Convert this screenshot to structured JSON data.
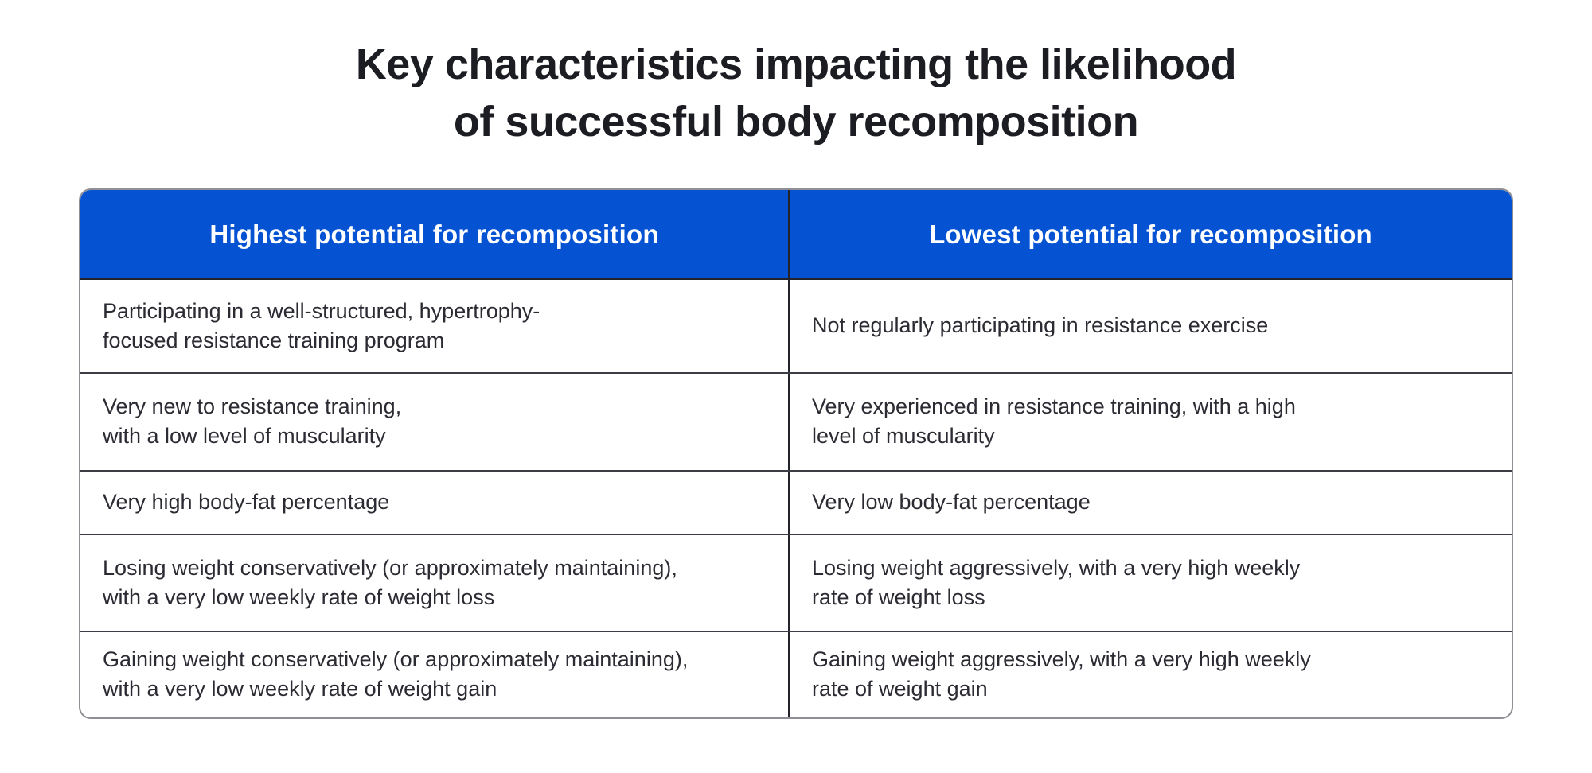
{
  "title": {
    "text": "Key characteristics impacting the likelihood\nof successful body recomposition"
  },
  "table": {
    "headers": [
      "Highest potential for recomposition",
      "Lowest potential for recomposition"
    ],
    "rows": [
      {
        "left": "Participating in a well-structured, hypertrophy-\nfocused resistance training program",
        "right": "Not regularly participating in resistance exercise"
      },
      {
        "left": "Very new to resistance training,\nwith a low level of muscularity",
        "right": "Very experienced in resistance training, with a high\nlevel of muscularity"
      },
      {
        "left": "Very high body-fat percentage",
        "right": "Very low body-fat percentage"
      },
      {
        "left": "Losing weight conservatively (or approximately maintaining),\nwith a very low weekly rate of weight loss",
        "right": "Losing weight aggressively, with a very high weekly\nrate of weight loss"
      },
      {
        "left": "Gaining weight conservatively (or approximately maintaining),\nwith a very low weekly rate of weight gain",
        "right": "Gaining weight aggressively, with a very high weekly\nrate of weight gain"
      }
    ]
  },
  "colors": {
    "header_bg": "#0553D3",
    "header_text": "#FFFFFF",
    "title_text": "#1C1C23",
    "body_text": "#2B2B33",
    "grid_line": "#3C3C44",
    "divider_line": "#23232C",
    "outer_border": "#8F8F96",
    "background": "#FFFFFF"
  },
  "chart_data": {
    "type": "table",
    "title": "Key characteristics impacting the likelihood of successful body recomposition",
    "columns": [
      "Highest potential for recomposition",
      "Lowest potential for recomposition"
    ],
    "rows": [
      [
        "Participating in a well-structured, hypertrophy-focused resistance training program",
        "Not regularly participating in resistance exercise"
      ],
      [
        "Very new to resistance training, with a low level of muscularity",
        "Very experienced in resistance training, with a high level of muscularity"
      ],
      [
        "Very high body-fat percentage",
        "Very low body-fat percentage"
      ],
      [
        "Losing weight conservatively (or approximately maintaining), with a very low weekly rate of weight loss",
        "Losing weight aggressively, with a very high weekly rate of weight loss"
      ],
      [
        "Gaining weight conservatively (or approximately maintaining), with a very low weekly rate of weight gain",
        "Gaining weight aggressively, with a very high weekly rate of weight gain"
      ]
    ],
    "layout": "two-column comparison table with blue header row, centered title above, grid lines on, no legend"
  }
}
